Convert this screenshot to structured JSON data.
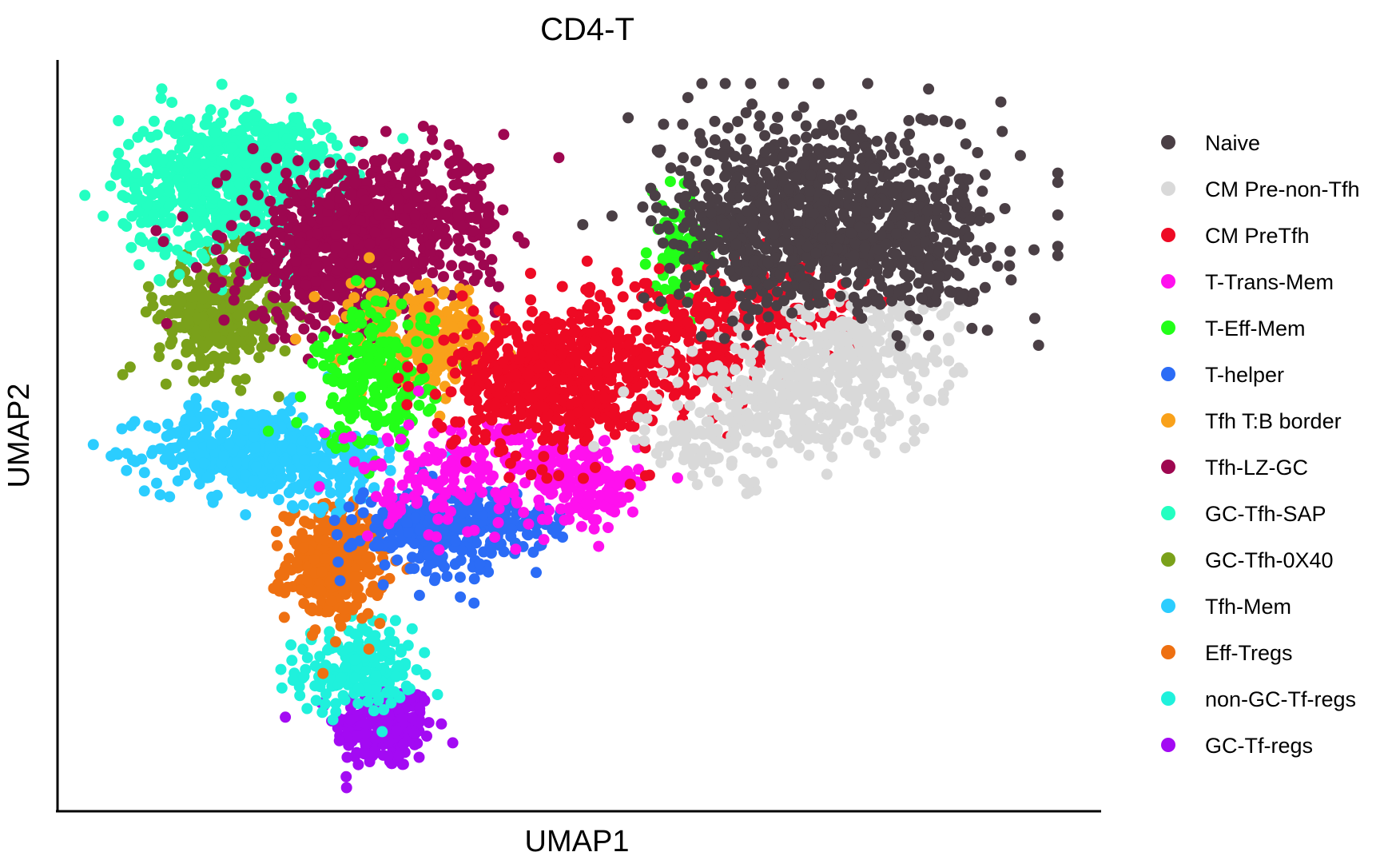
{
  "chart_data": {
    "type": "scatter",
    "title": "CD4-T",
    "xlabel": "UMAP1",
    "ylabel": "UMAP2",
    "xlim": [
      0,
      100
    ],
    "ylim": [
      0,
      100
    ],
    "ticks_shown": false,
    "grid": false,
    "legend_position": "right",
    "series": [
      {
        "name": "Naive",
        "color": "#4a3f45",
        "clusters": [
          {
            "center": [
              75,
              82
            ],
            "spread": [
              8,
              7
            ],
            "count": 600
          },
          {
            "center": [
              84,
              77
            ],
            "spread": [
              5,
              5
            ],
            "count": 250
          },
          {
            "center": [
              70,
              76
            ],
            "spread": [
              5,
              4
            ],
            "count": 200
          }
        ]
      },
      {
        "name": "CM Pre-non-Tfh",
        "color": "#d9d9d9",
        "clusters": [
          {
            "center": [
              72,
              56
            ],
            "spread": [
              6,
              4
            ],
            "count": 300
          },
          {
            "center": [
              79,
              62
            ],
            "spread": [
              5,
              4
            ],
            "count": 200
          },
          {
            "center": [
              64,
              49
            ],
            "spread": [
              4,
              3
            ],
            "count": 80
          }
        ]
      },
      {
        "name": "CM PreTfh",
        "color": "#ee0a24",
        "clusters": [
          {
            "center": [
              48,
              58
            ],
            "spread": [
              5,
              5
            ],
            "count": 550
          },
          {
            "center": [
              62,
              62
            ],
            "spread": [
              5,
              5
            ],
            "count": 200
          },
          {
            "center": [
              70,
              68
            ],
            "spread": [
              5,
              4
            ],
            "count": 120
          }
        ]
      },
      {
        "name": "T-Trans-Mem",
        "color": "#ff10ee",
        "clusters": [
          {
            "center": [
              51,
              43
            ],
            "spread": [
              3,
              3
            ],
            "count": 160
          },
          {
            "center": [
              43,
              46
            ],
            "spread": [
              4,
              3
            ],
            "count": 80
          },
          {
            "center": [
              35,
              44
            ],
            "spread": [
              4,
              4
            ],
            "count": 100
          }
        ]
      },
      {
        "name": "T-Eff-Mem",
        "color": "#22ff18",
        "clusters": [
          {
            "center": [
              30,
              58
            ],
            "spread": [
              3,
              5
            ],
            "count": 220
          },
          {
            "center": [
              61,
              76
            ],
            "spread": [
              1.5,
              4
            ],
            "count": 60
          }
        ]
      },
      {
        "name": "T-helper",
        "color": "#2b6cf6",
        "clusters": [
          {
            "center": [
              36,
              37
            ],
            "spread": [
              4,
              3
            ],
            "count": 260
          },
          {
            "center": [
              43,
              38
            ],
            "spread": [
              3,
              2
            ],
            "count": 90
          }
        ]
      },
      {
        "name": "Tfh T:B border",
        "color": "#f9a11a",
        "clusters": [
          {
            "center": [
              36,
              63
            ],
            "spread": [
              3,
              3
            ],
            "count": 180
          },
          {
            "center": [
              33,
              66
            ],
            "spread": [
              4,
              3
            ],
            "count": 60
          }
        ]
      },
      {
        "name": "Tfh-LZ-GC",
        "color": "#9e0750",
        "clusters": [
          {
            "center": [
              27,
              76
            ],
            "spread": [
              6,
              6
            ],
            "count": 600
          },
          {
            "center": [
              34,
              81
            ],
            "spread": [
              5,
              4
            ],
            "count": 250
          }
        ]
      },
      {
        "name": "GC-Tfh-SAP",
        "color": "#23ffc1",
        "clusters": [
          {
            "center": [
              14,
              85
            ],
            "spread": [
              5,
              5
            ],
            "count": 500
          },
          {
            "center": [
              19,
              90
            ],
            "spread": [
              5,
              3
            ],
            "count": 150
          }
        ]
      },
      {
        "name": "GC-Tfh-0X40",
        "color": "#7aa11a",
        "clusters": [
          {
            "center": [
              14,
              67
            ],
            "spread": [
              3,
              4
            ],
            "count": 300
          }
        ]
      },
      {
        "name": "Tfh-Mem",
        "color": "#2bcdff",
        "clusters": [
          {
            "center": [
              17,
              48
            ],
            "spread": [
              5,
              3
            ],
            "count": 380
          },
          {
            "center": [
              25,
              46
            ],
            "spread": [
              4,
              3
            ],
            "count": 140
          }
        ]
      },
      {
        "name": "Eff-Tregs",
        "color": "#ee7011",
        "clusters": [
          {
            "center": [
              26,
              32
            ],
            "spread": [
              2.5,
              4
            ],
            "count": 320
          }
        ]
      },
      {
        "name": "non-GC-Tf-regs",
        "color": "#1ff1dc",
        "clusters": [
          {
            "center": [
              28,
              17
            ],
            "spread": [
              3,
              3
            ],
            "count": 200
          }
        ]
      },
      {
        "name": "GC-Tf-regs",
        "color": "#a30af3",
        "clusters": [
          {
            "center": [
              31,
              9
            ],
            "spread": [
              2.5,
              3
            ],
            "count": 220
          }
        ]
      }
    ]
  }
}
